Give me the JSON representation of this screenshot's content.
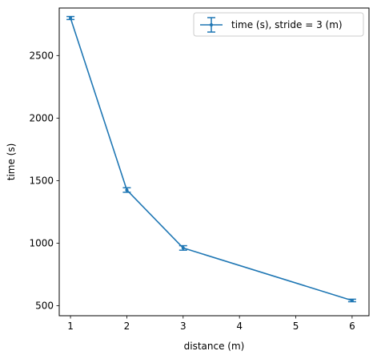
{
  "chart_data": {
    "type": "line",
    "title": "",
    "xlabel": "distance (m)",
    "ylabel": "time (s)",
    "xlim": [
      0.8,
      6.3
    ],
    "ylim": [
      420,
      2880
    ],
    "xticks": [
      1,
      2,
      3,
      4,
      5,
      6
    ],
    "yticks": [
      500,
      1000,
      1500,
      2000,
      2500
    ],
    "grid": false,
    "legend_position": "top-right",
    "series": [
      {
        "name": "time (s), stride = 3 (m)",
        "color": "#1f77b4",
        "x": [
          1,
          2,
          3,
          6
        ],
        "y": [
          2800,
          1425,
          962,
          542
        ],
        "yerr": [
          12,
          18,
          18,
          10
        ]
      }
    ]
  }
}
